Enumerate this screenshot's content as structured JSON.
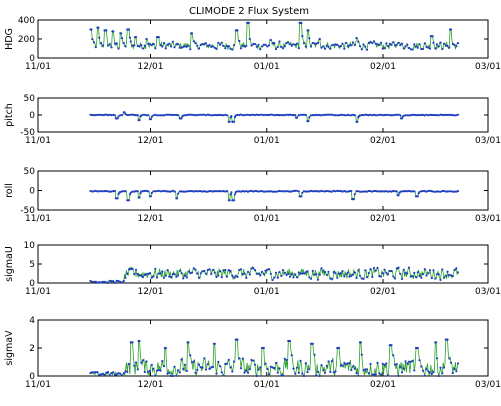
{
  "chart_data": {
    "type": "line",
    "title": "CLIMODE 2 Flux System",
    "x_ticks": [
      "11/01",
      "12/01",
      "01/01",
      "02/01",
      "03/01"
    ],
    "x_range": [
      "2005-11-01",
      "2006-03-01"
    ],
    "data_span": [
      "2005-11-15",
      "2006-02-21"
    ],
    "colors": {
      "line": "#2ca02c",
      "marker": "#1f3fbf"
    },
    "panels": [
      {
        "ylabel": "HDG",
        "ylim": [
          0,
          400
        ],
        "yticks": [
          "0",
          "200",
          "400"
        ],
        "baseline": 130,
        "noise": 55,
        "spikes": [
          [
            "2005-11-15",
            300
          ],
          [
            "2005-11-17",
            320
          ],
          [
            "2005-11-19",
            290
          ],
          [
            "2005-11-21",
            280
          ],
          [
            "2005-11-23",
            260
          ],
          [
            "2005-11-25",
            300
          ],
          [
            "2005-11-27",
            220
          ],
          [
            "2005-11-30",
            200
          ],
          [
            "2005-12-03",
            220
          ],
          [
            "2005-12-12",
            260
          ],
          [
            "2005-12-24",
            290
          ],
          [
            "2005-12-27",
            370
          ],
          [
            "2006-01-02",
            190
          ],
          [
            "2006-01-10",
            370
          ],
          [
            "2006-01-12",
            290
          ],
          [
            "2006-01-15",
            200
          ],
          [
            "2006-01-25",
            210
          ],
          [
            "2006-02-05",
            160
          ],
          [
            "2006-02-14",
            230
          ],
          [
            "2006-02-19",
            300
          ]
        ]
      },
      {
        "ylabel": "pitch",
        "ylim": [
          -50,
          50
        ],
        "yticks": [
          "-50",
          "0",
          "50"
        ],
        "baseline": 0,
        "noise": 1.5,
        "spikes": [
          [
            "2005-11-22",
            -10
          ],
          [
            "2005-11-24",
            8
          ],
          [
            "2005-11-28",
            -15
          ],
          [
            "2005-12-01",
            -12
          ],
          [
            "2005-12-09",
            -10
          ],
          [
            "2005-12-22",
            -20
          ],
          [
            "2005-12-23",
            -20
          ],
          [
            "2006-01-09",
            -8
          ],
          [
            "2006-01-12",
            -18
          ],
          [
            "2006-01-25",
            -20
          ],
          [
            "2006-02-06",
            -10
          ]
        ]
      },
      {
        "ylabel": "roll",
        "ylim": [
          -50,
          50
        ],
        "yticks": [
          "-50",
          "0",
          "50"
        ],
        "baseline": -2,
        "noise": 1.5,
        "spikes": [
          [
            "2005-11-22",
            -20
          ],
          [
            "2005-11-25",
            -25
          ],
          [
            "2005-11-28",
            -18
          ],
          [
            "2005-12-01",
            -15
          ],
          [
            "2005-12-08",
            -20
          ],
          [
            "2005-12-22",
            -25
          ],
          [
            "2005-12-23",
            -25
          ],
          [
            "2006-01-10",
            -15
          ],
          [
            "2006-01-24",
            -22
          ],
          [
            "2006-02-05",
            -12
          ],
          [
            "2006-02-10",
            -15
          ]
        ]
      },
      {
        "ylabel": "sigmaU",
        "ylim": [
          0,
          10
        ],
        "yticks": [
          "0",
          "5",
          "10"
        ],
        "baseline": 2.5,
        "noise": 2.0,
        "active_from": "2005-11-24",
        "quiet_level": 0.3,
        "spikes": []
      },
      {
        "ylabel": "sigmaV",
        "ylim": [
          0,
          4
        ],
        "yticks": [
          "0",
          "2",
          "4"
        ],
        "baseline": 0.6,
        "noise": 0.9,
        "active_from": "2005-11-24",
        "quiet_level": 0.15,
        "spikes": [
          [
            "2005-11-26",
            2.4
          ],
          [
            "2005-11-28",
            2.5
          ],
          [
            "2005-12-05",
            2.0
          ],
          [
            "2005-12-11",
            2.4
          ],
          [
            "2005-12-18",
            2.3
          ],
          [
            "2005-12-24",
            2.6
          ],
          [
            "2005-12-31",
            2.0
          ],
          [
            "2006-01-07",
            2.5
          ],
          [
            "2006-01-13",
            2.3
          ],
          [
            "2006-01-20",
            2.0
          ],
          [
            "2006-01-26",
            2.4
          ],
          [
            "2006-02-03",
            2.2
          ],
          [
            "2006-02-10",
            2.0
          ],
          [
            "2006-02-15",
            2.4
          ],
          [
            "2006-02-18",
            2.6
          ]
        ]
      }
    ]
  }
}
